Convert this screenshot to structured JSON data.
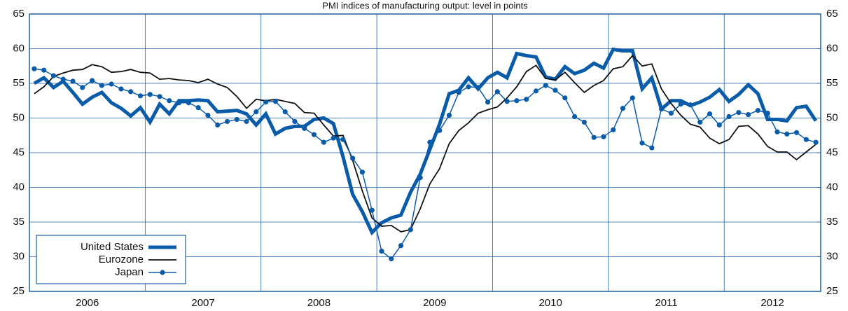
{
  "chart_data": {
    "type": "line",
    "title": "PMI indices of manufacturing output: level in points",
    "categories": [
      null,
      null,
      null,
      null,
      null,
      null,
      "2006",
      null,
      null,
      null,
      null,
      null,
      null,
      null,
      null,
      null,
      null,
      null,
      "2007",
      null,
      null,
      null,
      null,
      null,
      null,
      null,
      null,
      null,
      null,
      null,
      "2008",
      null,
      null,
      null,
      null,
      null,
      null,
      null,
      null,
      null,
      null,
      null,
      "2009",
      null,
      null,
      null,
      null,
      null,
      null,
      null,
      null,
      null,
      null,
      null,
      "2010",
      null,
      null,
      null,
      null,
      null,
      null,
      null,
      null,
      null,
      null,
      null,
      "2011",
      null,
      null,
      null,
      null,
      null,
      null,
      null,
      null,
      null,
      null,
      "2012",
      null,
      null,
      null,
      null
    ],
    "series": [
      {
        "name": "United States",
        "color": "#0b5ca8",
        "width": 5,
        "markers": false,
        "values": [
          55.0,
          55.8,
          54.4,
          55.3,
          53.7,
          52.0,
          53.0,
          53.7,
          52.2,
          51.4,
          50.3,
          51.5,
          49.4,
          52.0,
          50.6,
          52.5,
          52.5,
          52.6,
          52.5,
          50.9,
          51.0,
          51.1,
          50.6,
          49.0,
          50.6,
          47.7,
          48.5,
          48.8,
          48.8,
          49.8,
          50.0,
          49.2,
          44.4,
          39.0,
          36.5,
          33.5,
          34.9,
          35.6,
          36.0,
          39.3,
          41.9,
          45.5,
          49.1,
          53.5,
          54.0,
          55.8,
          54.2,
          55.8,
          56.6,
          55.8,
          59.3,
          59.0,
          58.8,
          55.9,
          55.6,
          57.4,
          56.4,
          56.9,
          57.9,
          57.2,
          59.9,
          59.7,
          59.7,
          54.2,
          55.8,
          51.3,
          52.5,
          52.5,
          51.8,
          52.3,
          53.0,
          54.1,
          52.4,
          53.4,
          54.8,
          53.5,
          49.8,
          49.8,
          49.6,
          51.5,
          51.7,
          49.6
        ]
      },
      {
        "name": "Eurozone",
        "color": "#111111",
        "width": 1.8,
        "markers": false,
        "values": [
          53.5,
          54.5,
          56.0,
          56.5,
          56.9,
          57.0,
          57.7,
          57.4,
          56.6,
          56.7,
          57.0,
          56.6,
          56.5,
          55.6,
          55.7,
          55.5,
          55.4,
          55.1,
          55.6,
          54.9,
          54.4,
          53.1,
          51.4,
          52.7,
          52.5,
          52.7,
          52.4,
          52.1,
          50.8,
          50.7,
          49.0,
          47.4,
          47.5,
          43.9,
          39.5,
          35.6,
          34.4,
          34.5,
          33.6,
          33.9,
          36.9,
          40.5,
          42.7,
          46.3,
          48.2,
          49.3,
          50.7,
          51.2,
          51.6,
          52.9,
          54.5,
          56.7,
          57.6,
          55.7,
          55.5,
          56.6,
          55.1,
          53.7,
          54.7,
          55.4,
          57.1,
          57.4,
          59.0,
          57.5,
          57.8,
          54.2,
          52.1,
          50.4,
          49.1,
          48.7,
          47.1,
          46.3,
          46.9,
          48.8,
          48.9,
          47.7,
          45.9,
          45.1,
          45.1,
          44.0,
          45.1,
          46.2
        ]
      },
      {
        "name": "Japan",
        "color": "#0b5ca8",
        "width": 1.5,
        "markers": true,
        "values": [
          57.1,
          56.9,
          56.1,
          55.6,
          55.3,
          54.4,
          55.4,
          54.7,
          54.9,
          54.2,
          53.8,
          53.2,
          53.4,
          53.1,
          52.5,
          52.2,
          52.2,
          51.5,
          50.4,
          49.0,
          49.5,
          49.8,
          49.5,
          50.9,
          52.3,
          52.4,
          50.9,
          49.5,
          48.5,
          47.6,
          46.5,
          47.1,
          46.9,
          44.2,
          42.2,
          36.7,
          30.8,
          29.7,
          31.6,
          33.9,
          41.4,
          46.5,
          48.2,
          50.4,
          53.7,
          54.5,
          54.4,
          52.3,
          53.8,
          52.4,
          52.5,
          52.7,
          53.9,
          54.7,
          54.0,
          52.9,
          50.2,
          49.4,
          47.2,
          47.3,
          48.3,
          51.4,
          52.9,
          46.4,
          45.7,
          51.3,
          50.7,
          52.0,
          51.9,
          49.4,
          50.6,
          49.0,
          50.2,
          50.8,
          50.5,
          51.1,
          50.7,
          48.0,
          47.7,
          47.9,
          46.9,
          46.5
        ]
      }
    ],
    "ylim": [
      25,
      65
    ],
    "yticks": [
      25,
      30,
      35,
      40,
      45,
      50,
      55,
      60,
      65
    ],
    "y2lim": [
      25,
      65
    ],
    "y2ticks": [
      25,
      30,
      35,
      40,
      45,
      50,
      55,
      60,
      65
    ],
    "grid": true,
    "legend": "lower left"
  }
}
